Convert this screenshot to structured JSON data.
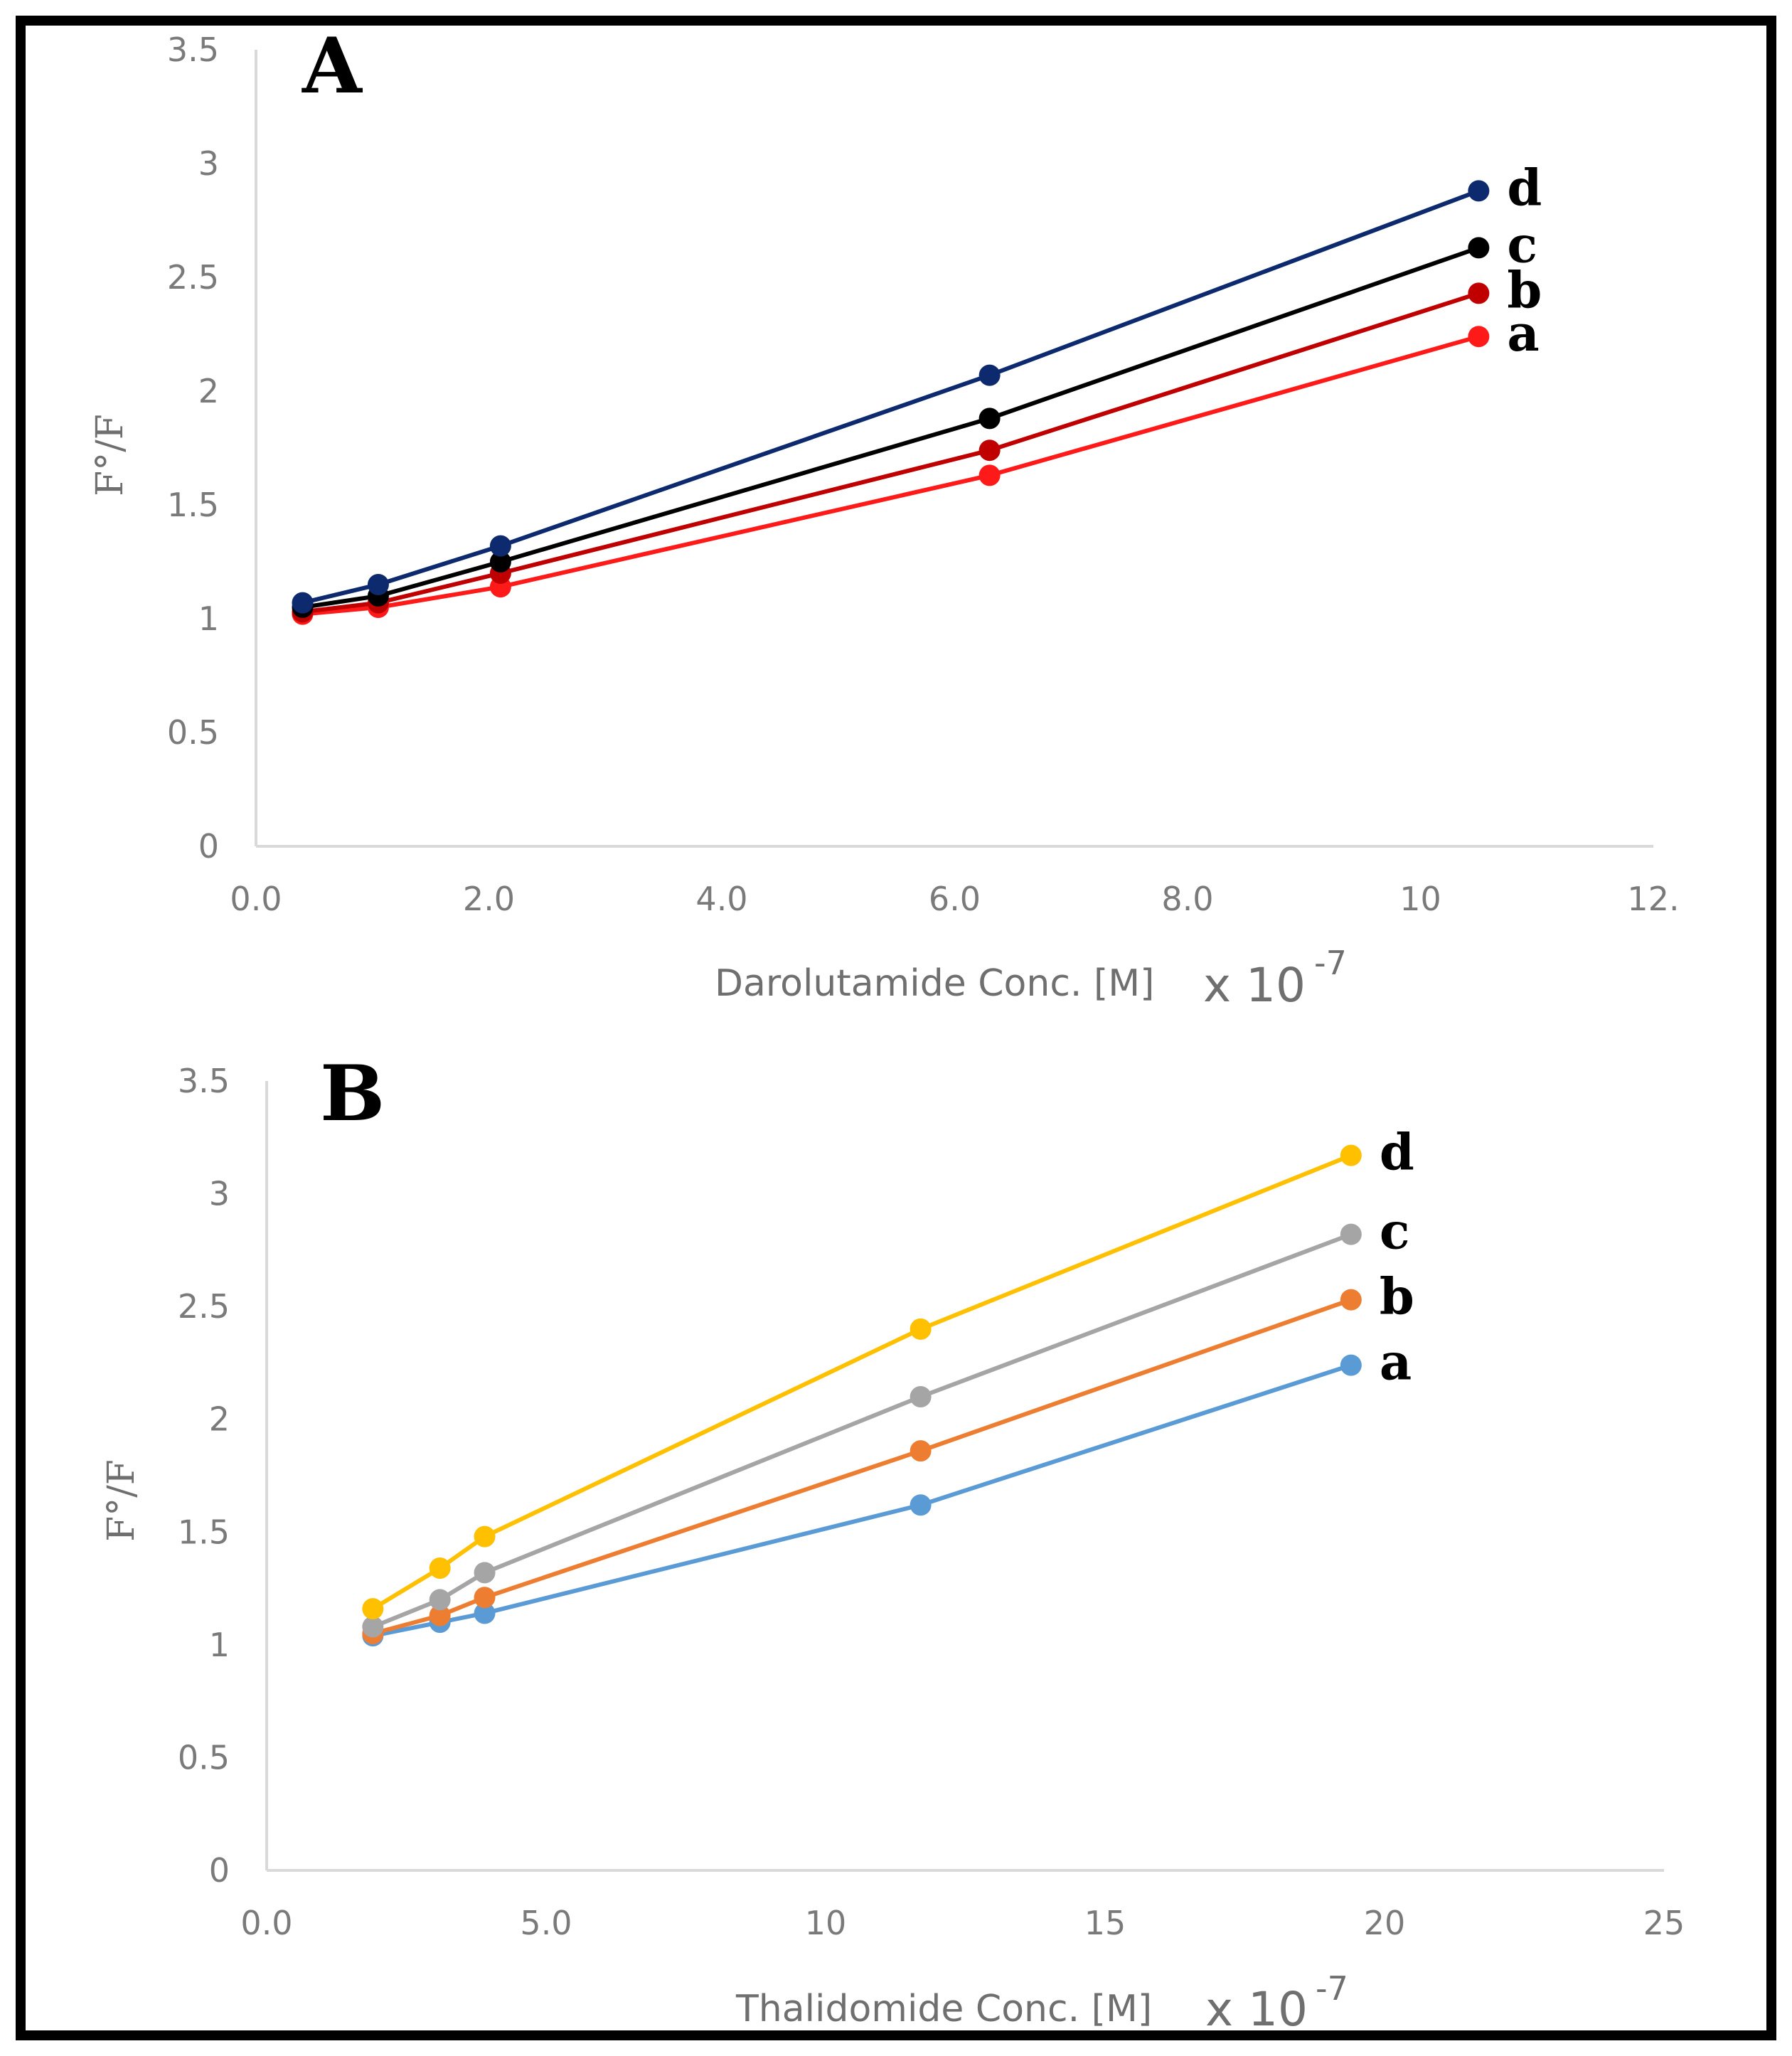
{
  "chart_data": [
    {
      "type": "line",
      "panel_label": "A",
      "xlabel": "Darolutamide Conc. [M]",
      "x_multiplier": "x 10",
      "x_exponent": "-7",
      "ylabel": "F°/F",
      "xlim": [
        0,
        12
      ],
      "ylim": [
        0,
        3.5
      ],
      "x_ticks": [
        0,
        2,
        4,
        6,
        8,
        10,
        12
      ],
      "x_tick_labels": [
        "0.0",
        "2.0",
        "4.0",
        "6.0",
        "8.0",
        "10",
        "12."
      ],
      "y_ticks": [
        0,
        0.5,
        1,
        1.5,
        2,
        2.5,
        3,
        3.5
      ],
      "y_tick_labels": [
        "0",
        "0.5",
        "1",
        "1.5",
        "2",
        "2.5",
        "3",
        "3.5"
      ],
      "x": [
        0.4,
        1.05,
        2.1,
        6.3,
        10.5
      ],
      "series": [
        {
          "name": "a",
          "color": "#ff1a1a",
          "values": [
            1.02,
            1.05,
            1.14,
            1.63,
            2.24
          ]
        },
        {
          "name": "b",
          "color": "#c00000",
          "values": [
            1.03,
            1.07,
            1.2,
            1.74,
            2.43
          ]
        },
        {
          "name": "c",
          "color": "#000000",
          "values": [
            1.05,
            1.1,
            1.25,
            1.88,
            2.63
          ]
        },
        {
          "name": "d",
          "color": "#0d2a6e",
          "values": [
            1.07,
            1.15,
            1.32,
            2.07,
            2.88
          ]
        }
      ]
    },
    {
      "type": "line",
      "panel_label": "B",
      "xlabel": "Thalidomide Conc. [M]",
      "x_multiplier": "x 10",
      "x_exponent": "-7",
      "ylabel": "F°/F",
      "xlim": [
        0,
        25
      ],
      "ylim": [
        0,
        3.5
      ],
      "x_ticks": [
        0,
        5,
        10,
        15,
        20,
        25
      ],
      "x_tick_labels": [
        "0.0",
        "5.0",
        "10",
        "15",
        "20",
        "25"
      ],
      "y_ticks": [
        0,
        0.5,
        1,
        1.5,
        2,
        2.5,
        3,
        3.5
      ],
      "y_tick_labels": [
        "0",
        "0.5",
        "1",
        "1.5",
        "2",
        "2.5",
        "3",
        "3.5"
      ],
      "x": [
        1.9,
        3.1,
        3.9,
        11.7,
        19.4
      ],
      "series": [
        {
          "name": "a",
          "color": "#5b9bd5",
          "values": [
            1.04,
            1.1,
            1.14,
            1.62,
            2.24
          ]
        },
        {
          "name": "b",
          "color": "#ed7d31",
          "values": [
            1.05,
            1.13,
            1.21,
            1.86,
            2.53
          ]
        },
        {
          "name": "c",
          "color": "#a5a5a5",
          "values": [
            1.08,
            1.2,
            1.32,
            2.1,
            2.82
          ]
        },
        {
          "name": "d",
          "color": "#ffc000",
          "values": [
            1.16,
            1.34,
            1.48,
            2.4,
            3.17
          ]
        }
      ]
    }
  ]
}
